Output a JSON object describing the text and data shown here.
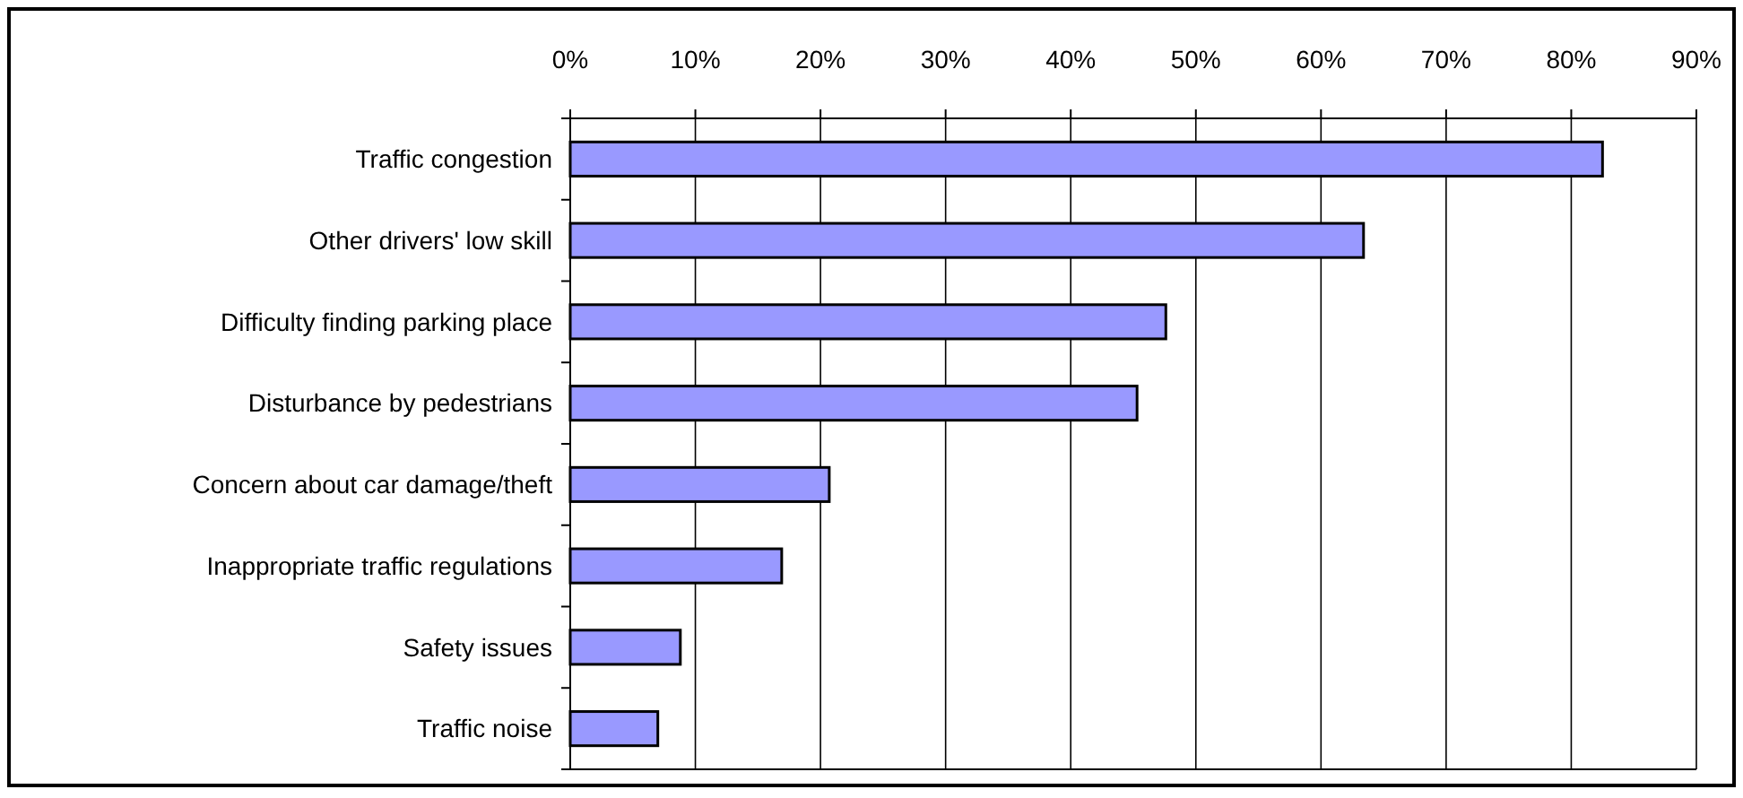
{
  "chart_data": {
    "type": "bar",
    "orientation": "horizontal",
    "categories": [
      "Traffic congestion",
      "Other drivers' low skill",
      "Difficulty finding parking place",
      "Disturbance by pedestrians",
      "Concern about car damage/theft",
      "Inappropriate traffic regulations",
      "Safety issues",
      "Traffic noise"
    ],
    "values": [
      82.5,
      63.4,
      47.6,
      45.3,
      20.7,
      16.9,
      8.8,
      7
    ],
    "color": "#9999ff",
    "xlim": [
      0,
      90
    ],
    "xticks": [
      {
        "value": 0,
        "label": "0%"
      },
      {
        "value": 10,
        "label": "10%"
      },
      {
        "value": 20,
        "label": "20%"
      },
      {
        "value": 30,
        "label": "30%"
      },
      {
        "value": 40,
        "label": "40%"
      },
      {
        "value": 50,
        "label": "50%"
      },
      {
        "value": 60,
        "label": "60%"
      },
      {
        "value": 70,
        "label": "70%"
      },
      {
        "value": 80,
        "label": "80%"
      },
      {
        "value": 90,
        "label": "90%"
      }
    ],
    "grid": "x"
  }
}
